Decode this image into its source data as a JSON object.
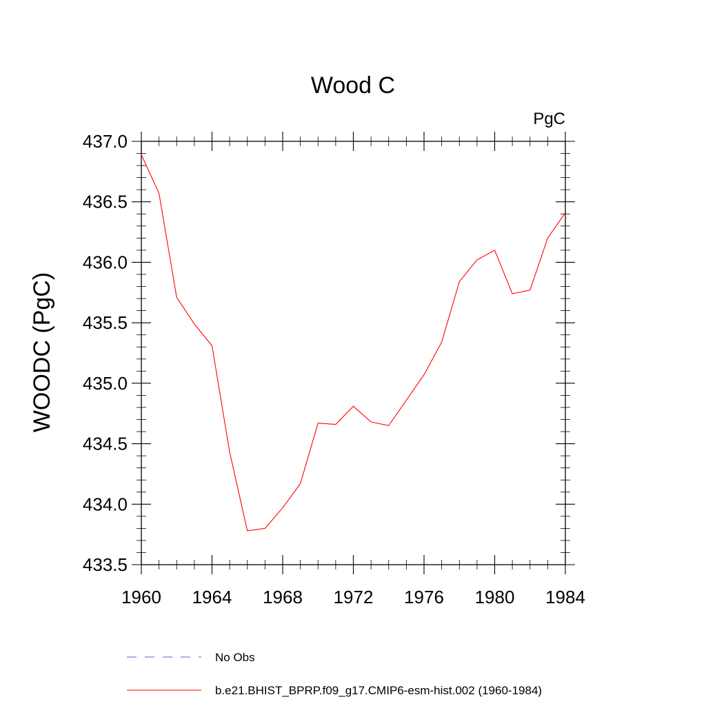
{
  "chart_data": {
    "type": "line",
    "title": "Wood C",
    "units_label": "PgC",
    "xlabel": "",
    "ylabel": "WOODC  (PgC)",
    "xlim": [
      1960,
      1984
    ],
    "ylim": [
      433.5,
      437.0
    ],
    "x_ticks": [
      1960,
      1964,
      1968,
      1972,
      1976,
      1980,
      1984
    ],
    "y_ticks": [
      "433.5",
      "434.0",
      "434.5",
      "435.0",
      "435.5",
      "436.0",
      "436.5",
      "437.0"
    ],
    "grid": false,
    "series": [
      {
        "name": "b.e21.BHIST_BPRP.f09_g17.CMIP6-esm-hist.002 (1960-1984)",
        "color": "#ff0000",
        "style": "solid",
        "x": [
          1960,
          1961,
          1962,
          1963,
          1964,
          1965,
          1966,
          1967,
          1968,
          1969,
          1970,
          1971,
          1972,
          1973,
          1974,
          1975,
          1976,
          1977,
          1978,
          1979,
          1980,
          1981,
          1982,
          1983,
          1984
        ],
        "values": [
          436.89,
          436.57,
          435.71,
          435.49,
          435.31,
          434.43,
          433.78,
          433.8,
          433.97,
          434.17,
          434.67,
          434.66,
          434.81,
          434.68,
          434.65,
          434.86,
          435.07,
          435.34,
          435.84,
          436.02,
          436.1,
          435.74,
          435.77,
          436.2,
          436.41
        ]
      }
    ],
    "legend": {
      "position": "bottom",
      "entries": [
        {
          "label": "No Obs",
          "color": "#6a5acd",
          "style": "dashed"
        },
        {
          "label": "b.e21.BHIST_BPRP.f09_g17.CMIP6-esm-hist.002 (1960-1984)",
          "color": "#ff0000",
          "style": "solid"
        }
      ]
    }
  }
}
